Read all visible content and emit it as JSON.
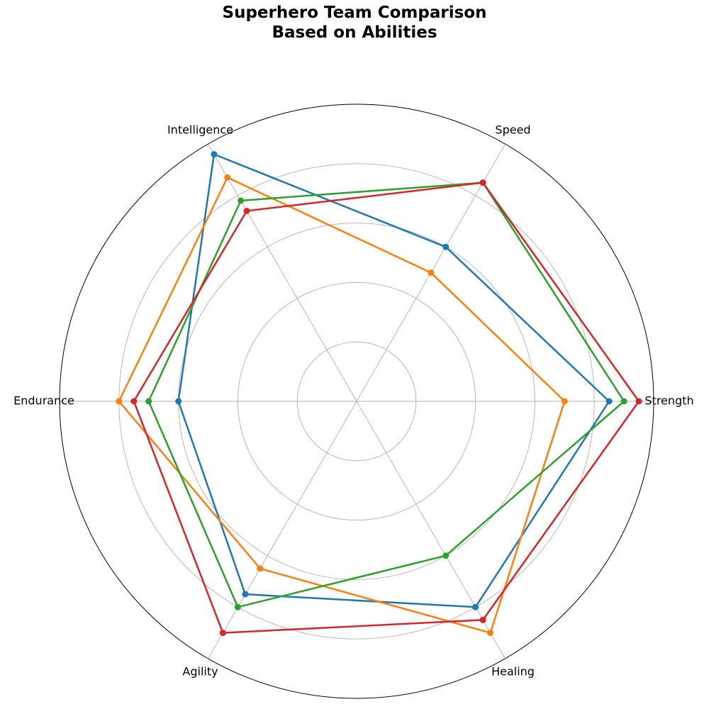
{
  "chart_data": {
    "type": "radar",
    "title": "Superhero Team Comparison\nBased on Abilities",
    "axes": [
      "Strength",
      "Speed",
      "Intelligence",
      "Endurance",
      "Agility",
      "Healing"
    ],
    "rlim": [
      0,
      100
    ],
    "grid": true,
    "rings": [
      20,
      40,
      60,
      80,
      100
    ],
    "series": [
      {
        "color": "#1f77b4",
        "values": [
          85,
          60,
          96,
          60,
          75,
          80
        ]
      },
      {
        "color": "#ff7f0e",
        "values": [
          70,
          50,
          87,
          80,
          65,
          90
        ]
      },
      {
        "color": "#2ca02c",
        "values": [
          90,
          85,
          78,
          70,
          80,
          60
        ]
      },
      {
        "color": "#d62728",
        "values": [
          95,
          85,
          74,
          75,
          90,
          85
        ]
      }
    ]
  }
}
